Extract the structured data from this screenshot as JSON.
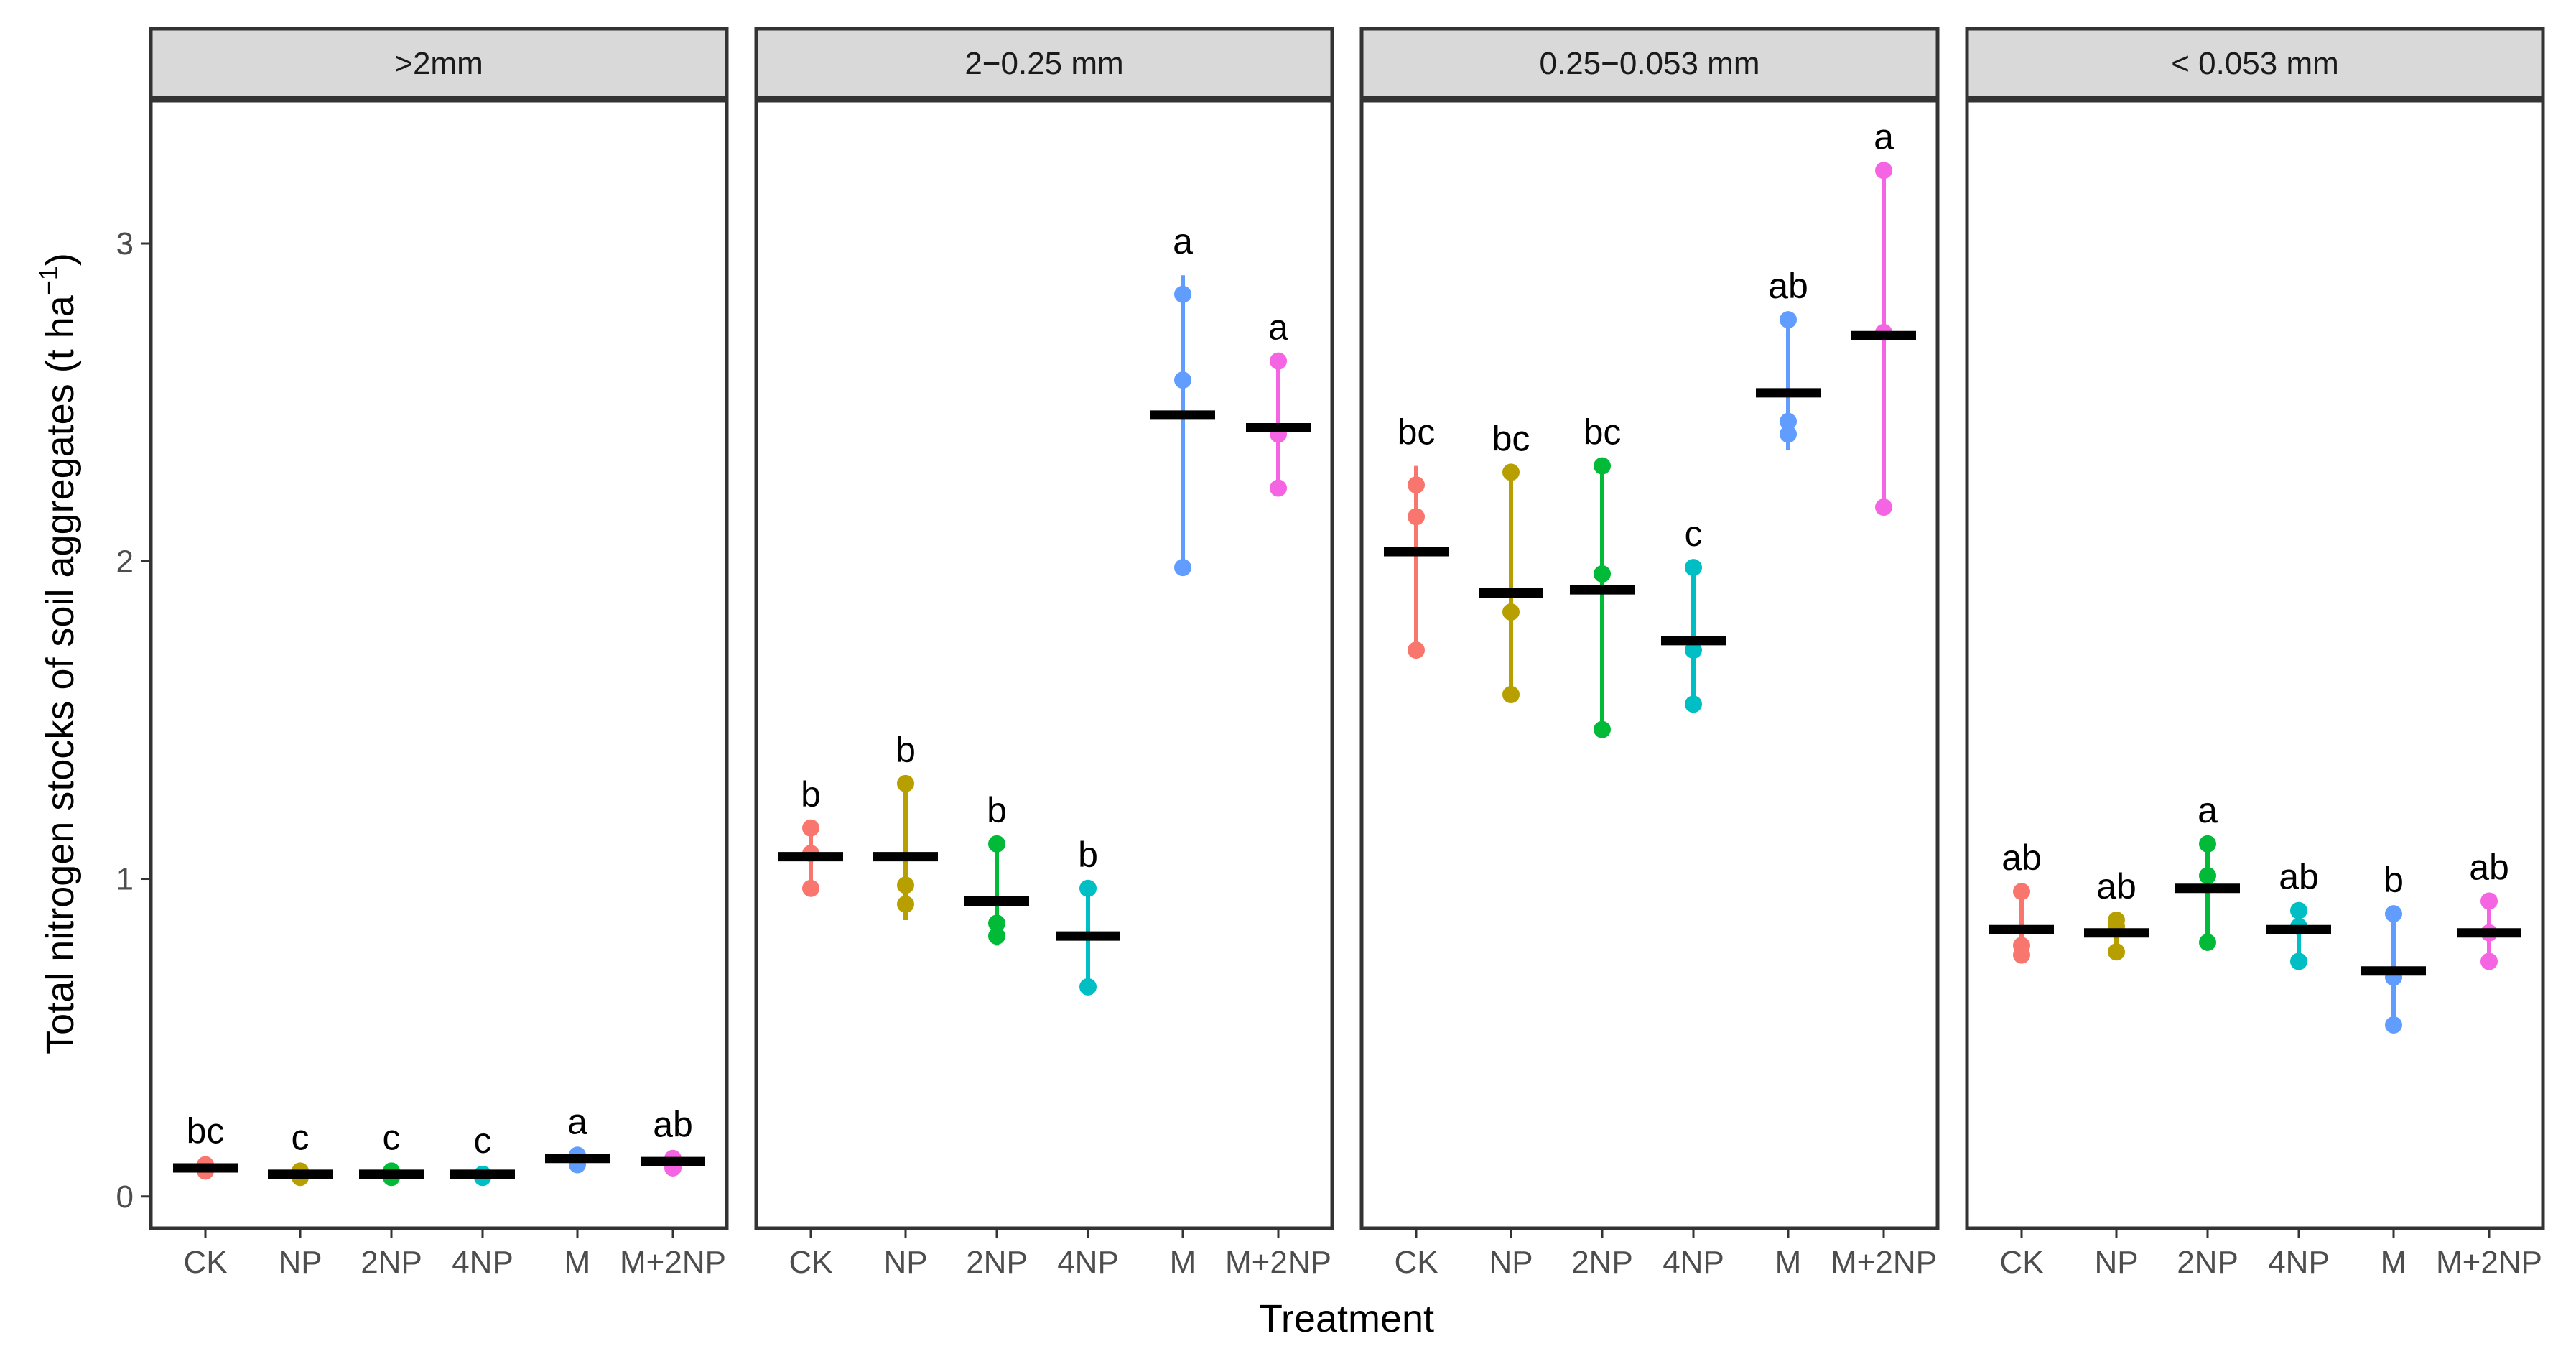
{
  "chart_data": {
    "type": "scatter",
    "title": "",
    "xlabel": "Treatment",
    "ylabel_main": "Total nitrogen stocks of soil aggregates (t ha",
    "ylabel_sup": "−1",
    "ylabel_close": ")",
    "ylim": [
      -0.1,
      3.45
    ],
    "yticks": [
      0,
      1,
      2,
      3
    ],
    "ytick_labels": [
      "0",
      "1",
      "2",
      "3"
    ],
    "categories": [
      "CK",
      "NP",
      "2NP",
      "4NP",
      "M",
      "M+2NP"
    ],
    "colors": {
      "CK": "#F8766D",
      "NP": "#B79F00",
      "2NP": "#00BA38",
      "4NP": "#00BFC4",
      "M": "#619CFF",
      "M+2NP": "#F564E3"
    },
    "mean_color": "#000000",
    "panels": [
      {
        "strip": ">2mm",
        "groups": [
          {
            "treatment": "CK",
            "points": [
              0.09,
              0.08,
              0.1
            ],
            "mean": 0.09,
            "range": [
              0.08,
              0.1
            ],
            "label": "bc"
          },
          {
            "treatment": "NP",
            "points": [
              0.07,
              0.06,
              0.08
            ],
            "mean": 0.07,
            "range": [
              0.06,
              0.08
            ],
            "label": "c"
          },
          {
            "treatment": "2NP",
            "points": [
              0.08,
              0.06,
              0.07
            ],
            "mean": 0.07,
            "range": [
              0.06,
              0.08
            ],
            "label": "c"
          },
          {
            "treatment": "4NP",
            "points": [
              0.07,
              0.06,
              0.07
            ],
            "mean": 0.07,
            "range": [
              0.06,
              0.07
            ],
            "label": "c"
          },
          {
            "treatment": "M",
            "points": [
              0.13,
              0.1,
              0.12
            ],
            "mean": 0.12,
            "range": [
              0.1,
              0.13
            ],
            "label": "a"
          },
          {
            "treatment": "M+2NP",
            "points": [
              0.12,
              0.09,
              0.11
            ],
            "mean": 0.11,
            "range": [
              0.09,
              0.12
            ],
            "label": "ab"
          }
        ]
      },
      {
        "strip": "2−0.25 mm",
        "groups": [
          {
            "treatment": "CK",
            "points": [
              1.16,
              1.08,
              0.97
            ],
            "mean": 1.07,
            "range": [
              0.97,
              1.16
            ],
            "label": "b"
          },
          {
            "treatment": "NP",
            "points": [
              1.3,
              0.98,
              0.92
            ],
            "mean": 1.07,
            "range": [
              0.87,
              1.3
            ],
            "label": "b"
          },
          {
            "treatment": "2NP",
            "points": [
              1.11,
              0.86,
              0.82
            ],
            "mean": 0.93,
            "range": [
              0.79,
              1.11
            ],
            "label": "b"
          },
          {
            "treatment": "4NP",
            "points": [
              0.97,
              0.66
            ],
            "mean": 0.82,
            "range": [
              0.66,
              0.97
            ],
            "label": "b"
          },
          {
            "treatment": "M",
            "points": [
              2.84,
              2.57,
              1.98
            ],
            "mean": 2.46,
            "range": [
              1.98,
              2.9
            ],
            "label": "a"
          },
          {
            "treatment": "M+2NP",
            "points": [
              2.63,
              2.4,
              2.23
            ],
            "mean": 2.42,
            "range": [
              2.23,
              2.63
            ],
            "label": "a"
          }
        ]
      },
      {
        "strip": "0.25−0.053 mm",
        "groups": [
          {
            "treatment": "CK",
            "points": [
              2.24,
              2.14,
              1.72
            ],
            "mean": 2.03,
            "range": [
              1.72,
              2.3
            ],
            "label": "bc"
          },
          {
            "treatment": "NP",
            "points": [
              2.28,
              1.84,
              1.58
            ],
            "mean": 1.9,
            "range": [
              1.56,
              2.28
            ],
            "label": "bc"
          },
          {
            "treatment": "2NP",
            "points": [
              2.3,
              1.96,
              1.47
            ],
            "mean": 1.91,
            "range": [
              1.47,
              2.3
            ],
            "label": "bc"
          },
          {
            "treatment": "4NP",
            "points": [
              1.98,
              1.72,
              1.55
            ],
            "mean": 1.75,
            "range": [
              1.55,
              1.98
            ],
            "label": "c"
          },
          {
            "treatment": "M",
            "points": [
              2.76,
              2.44,
              2.4
            ],
            "mean": 2.53,
            "range": [
              2.35,
              2.76
            ],
            "label": "ab"
          },
          {
            "treatment": "M+2NP",
            "points": [
              3.23,
              2.72,
              2.17
            ],
            "mean": 2.71,
            "range": [
              2.17,
              3.23
            ],
            "label": "a"
          }
        ]
      },
      {
        "strip": "< 0.053 mm",
        "groups": [
          {
            "treatment": "CK",
            "points": [
              0.96,
              0.79,
              0.76
            ],
            "mean": 0.84,
            "range": [
              0.76,
              0.96
            ],
            "label": "ab"
          },
          {
            "treatment": "NP",
            "points": [
              0.87,
              0.85,
              0.77
            ],
            "mean": 0.83,
            "range": [
              0.77,
              0.87
            ],
            "label": "ab"
          },
          {
            "treatment": "2NP",
            "points": [
              1.11,
              1.01,
              0.8
            ],
            "mean": 0.97,
            "range": [
              0.8,
              1.11
            ],
            "label": "a"
          },
          {
            "treatment": "4NP",
            "points": [
              0.9,
              0.85,
              0.74
            ],
            "mean": 0.84,
            "range": [
              0.74,
              0.9
            ],
            "label": "ab"
          },
          {
            "treatment": "M",
            "points": [
              0.89,
              0.69,
              0.54
            ],
            "mean": 0.71,
            "range": [
              0.54,
              0.89
            ],
            "label": "b"
          },
          {
            "treatment": "M+2NP",
            "points": [
              0.93,
              0.83,
              0.74
            ],
            "mean": 0.83,
            "range": [
              0.74,
              0.93
            ],
            "label": "ab"
          }
        ]
      }
    ]
  }
}
